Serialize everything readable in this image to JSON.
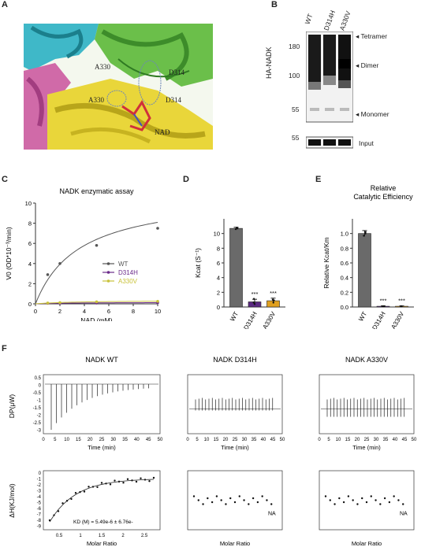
{
  "letters": {
    "a": "A",
    "b": "B",
    "c": "C",
    "d": "D",
    "e": "E",
    "f": "F"
  },
  "panelA": {
    "labels": [
      "A330",
      "D314",
      "A330",
      "D314",
      "NAD"
    ]
  },
  "panelB": {
    "lanes": [
      "WT",
      "D314H",
      "A330V"
    ],
    "ylabel": "HA-NADK",
    "markers": [
      "180",
      "100",
      "55",
      "55"
    ],
    "bands": [
      "Tetramer",
      "Dimer",
      "Monomer"
    ],
    "input": "Input"
  },
  "panelC": {
    "title": "NADK enzymatic assay",
    "ylabel": "V0 (OD*10⁻³/min)",
    "xlabel": "NAD (mM)",
    "legend": [
      "WT",
      "D314H",
      "A330V"
    ],
    "colors": {
      "WT": "#555555",
      "D314H": "#6b2a8a",
      "A330V": "#c9c23a"
    }
  },
  "panelD": {
    "ylabel": "Kcat (S⁻¹)",
    "stars": [
      "***",
      "***"
    ]
  },
  "panelE": {
    "title1": "Relative",
    "title2": "Catalytic Efficiency",
    "ylabel": "Relative Kcat/Km",
    "stars": [
      "***",
      "***"
    ]
  },
  "panelF": {
    "titles": [
      "NADK  WT",
      "NADK  D314H",
      "NADK  A330V"
    ],
    "dp_label": "DP(μW)",
    "dh_label": "ΔH(KJ/mol)",
    "time_label": "Time (min)",
    "molar_label": "Molar Ratio",
    "kd_text": "KD (M) = 5.49e-6 ± 6.76e-",
    "na": "NA"
  },
  "chart_data": [
    {
      "type": "line",
      "title": "NADK enzymatic assay",
      "xlabel": "NAD (mM)",
      "ylabel": "V0 (OD*10⁻³/min)",
      "xlim": [
        0,
        10
      ],
      "ylim": [
        0,
        10
      ],
      "xticks": [
        0,
        2,
        4,
        6,
        8,
        10
      ],
      "yticks": [
        0,
        2,
        4,
        6,
        8,
        10
      ],
      "series": [
        {
          "name": "WT",
          "x": [
            1,
            2,
            5,
            10
          ],
          "y": [
            2.9,
            4.0,
            5.8,
            7.5
          ]
        },
        {
          "name": "D314H",
          "x": [
            1,
            2,
            5,
            10
          ],
          "y": [
            0.05,
            0.05,
            0.08,
            0.12
          ]
        },
        {
          "name": "A330V",
          "x": [
            1,
            2,
            5,
            10
          ],
          "y": [
            0.08,
            0.12,
            0.2,
            0.25
          ]
        }
      ]
    },
    {
      "type": "bar",
      "ylabel": "Kcat (S⁻¹)",
      "categories": [
        "WT",
        "D314H",
        "A330V"
      ],
      "values": [
        10.7,
        0.7,
        0.85
      ],
      "ylim": [
        0,
        12
      ],
      "yticks": [
        0,
        2,
        4,
        6,
        8,
        10
      ],
      "colors": [
        "#6a6a6a",
        "#5b2a82",
        "#e0a020"
      ]
    },
    {
      "type": "bar",
      "ylabel": "Relative Kcat/Km",
      "categories": [
        "WT",
        "D314H",
        "A330V"
      ],
      "values": [
        1.0,
        0.01,
        0.01
      ],
      "ylim": [
        0,
        1.2
      ],
      "yticks": [
        0.0,
        0.2,
        0.4,
        0.6,
        0.8,
        1.0
      ],
      "colors": [
        "#6a6a6a",
        "#5b2a82",
        "#e0a020"
      ]
    },
    {
      "type": "scatter",
      "title": "NADK  WT",
      "xlabel": "Molar Ratio",
      "ylabel": "ΔH(KJ/mol)",
      "xticks": [
        0.5,
        1,
        1.5,
        2,
        2.5
      ],
      "yticks": [
        0,
        -1,
        -2,
        -3,
        -4,
        -5,
        -6,
        -7,
        -8,
        -9
      ]
    }
  ]
}
